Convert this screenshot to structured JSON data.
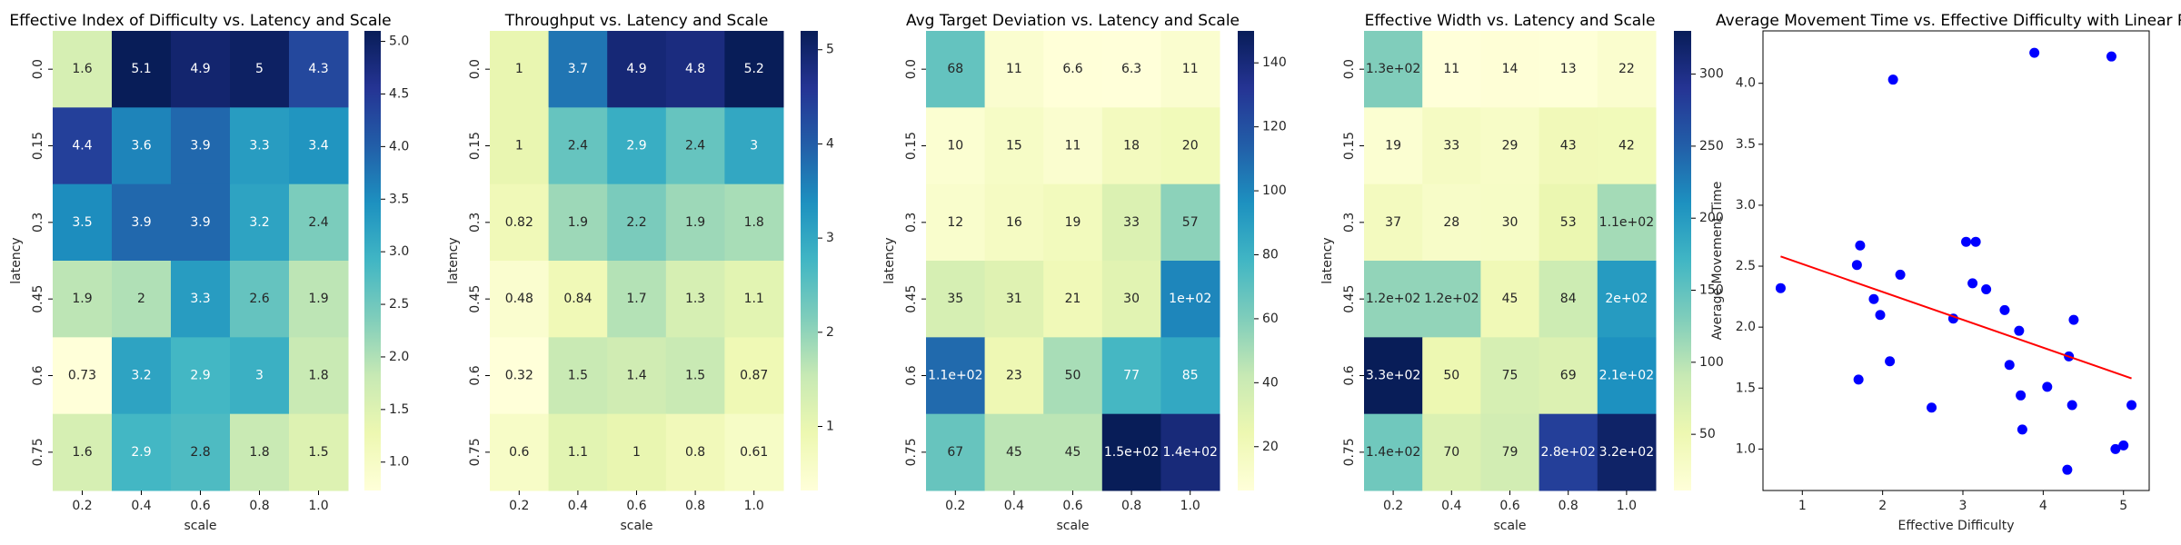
{
  "chart_data": [
    {
      "type": "heatmap",
      "title": "Effective Index of Difficulty vs. Latency and Scale",
      "xlabel": "scale",
      "ylabel": "latency",
      "categories": [
        "0.2",
        "0.4",
        "0.6",
        "0.8",
        "1.0"
      ],
      "rows": [
        "0.0",
        "0.15",
        "0.3",
        "0.45",
        "0.6",
        "0.75"
      ],
      "values": [
        [
          1.6,
          5.1,
          4.9,
          5,
          4.3
        ],
        [
          4.4,
          3.6,
          3.9,
          3.3,
          3.4
        ],
        [
          3.5,
          3.9,
          3.9,
          3.2,
          2.4
        ],
        [
          1.9,
          2,
          3.3,
          2.6,
          1.9
        ],
        [
          0.73,
          3.2,
          2.9,
          3,
          1.8
        ],
        [
          1.6,
          2.9,
          2.8,
          1.8,
          1.5
        ]
      ],
      "colormap": "YlGnBu",
      "clim": [
        0.73,
        5.1
      ],
      "cticks": [
        {
          "value": 1.0,
          "label": "1.0"
        },
        {
          "value": 1.5,
          "label": "1.5"
        },
        {
          "value": 2.0,
          "label": "2.0"
        },
        {
          "value": 2.5,
          "label": "2.5"
        },
        {
          "value": 3.0,
          "label": "3.0"
        },
        {
          "value": 3.5,
          "label": "3.5"
        },
        {
          "value": 4.0,
          "label": "4.0"
        },
        {
          "value": 4.5,
          "label": "4.5"
        },
        {
          "value": 5.0,
          "label": "5.0"
        }
      ]
    },
    {
      "type": "heatmap",
      "title": "Throughput vs. Latency and Scale",
      "xlabel": "scale",
      "ylabel": "latency",
      "categories": [
        "0.2",
        "0.4",
        "0.6",
        "0.8",
        "1.0"
      ],
      "rows": [
        "0.0",
        "0.15",
        "0.3",
        "0.45",
        "0.6",
        "0.75"
      ],
      "values": [
        [
          1,
          3.7,
          4.9,
          4.8,
          5.2
        ],
        [
          1,
          2.4,
          2.9,
          2.4,
          3
        ],
        [
          0.82,
          1.9,
          2.2,
          1.9,
          1.8
        ],
        [
          0.48,
          0.84,
          1.7,
          1.3,
          1.1
        ],
        [
          0.32,
          1.5,
          1.4,
          1.5,
          0.87
        ],
        [
          0.6,
          1.1,
          1,
          0.8,
          0.61
        ]
      ],
      "colormap": "YlGnBu",
      "clim": [
        0.32,
        5.2
      ],
      "cticks": [
        1,
        2,
        3,
        4,
        5
      ]
    },
    {
      "type": "heatmap",
      "title": "Avg Target Deviation vs. Latency and Scale",
      "xlabel": "scale",
      "ylabel": "latency",
      "categories": [
        "0.2",
        "0.4",
        "0.6",
        "0.8",
        "1.0"
      ],
      "rows": [
        "0.0",
        "0.15",
        "0.3",
        "0.45",
        "0.6",
        "0.75"
      ],
      "values": [
        [
          68,
          11,
          6.6,
          6.3,
          11
        ],
        [
          10,
          15,
          11,
          18,
          20
        ],
        [
          12,
          16,
          19,
          33,
          57
        ],
        [
          35,
          31,
          21,
          30,
          100
        ],
        [
          110,
          23,
          50,
          77,
          85
        ],
        [
          67,
          45,
          45,
          150,
          140
        ]
      ],
      "value_labels": [
        [
          "68",
          "11",
          "6.6",
          "6.3",
          "11"
        ],
        [
          "10",
          "15",
          "11",
          "18",
          "20"
        ],
        [
          "12",
          "16",
          "19",
          "33",
          "57"
        ],
        [
          "35",
          "31",
          "21",
          "30",
          "1e+02"
        ],
        [
          "1.1e+02",
          "23",
          "50",
          "77",
          "85"
        ],
        [
          "67",
          "45",
          "45",
          "1.5e+02",
          "1.4e+02"
        ]
      ],
      "colormap": "YlGnBu",
      "clim": [
        6.3,
        150
      ],
      "cticks": [
        20,
        40,
        60,
        80,
        100,
        120,
        140
      ]
    },
    {
      "type": "heatmap",
      "title": "Effective Width vs. Latency and Scale",
      "xlabel": "scale",
      "ylabel": "latency",
      "categories": [
        "0.2",
        "0.4",
        "0.6",
        "0.8",
        "1.0"
      ],
      "rows": [
        "0.0",
        "0.15",
        "0.3",
        "0.45",
        "0.6",
        "0.75"
      ],
      "values": [
        [
          130,
          11,
          14,
          13,
          22
        ],
        [
          19,
          33,
          29,
          43,
          42
        ],
        [
          37,
          28,
          30,
          53,
          110
        ],
        [
          120,
          120,
          45,
          84,
          200
        ],
        [
          330,
          50,
          75,
          69,
          210
        ],
        [
          140,
          70,
          79,
          280,
          320
        ]
      ],
      "value_labels": [
        [
          "1.3e+02",
          "11",
          "14",
          "13",
          "22"
        ],
        [
          "19",
          "33",
          "29",
          "43",
          "42"
        ],
        [
          "37",
          "28",
          "30",
          "53",
          "1.1e+02"
        ],
        [
          "1.2e+02",
          "1.2e+02",
          "45",
          "84",
          "2e+02"
        ],
        [
          "3.3e+02",
          "50",
          "75",
          "69",
          "2.1e+02"
        ],
        [
          "1.4e+02",
          "70",
          "79",
          "2.8e+02",
          "3.2e+02"
        ]
      ],
      "colormap": "YlGnBu",
      "clim": [
        11,
        330
      ],
      "cticks": [
        50,
        100,
        150,
        200,
        250,
        300
      ]
    },
    {
      "type": "scatter",
      "title": "Average Movement Time vs. Effective Difficulty with Linear Re",
      "xlabel": "Effective Difficulty",
      "ylabel": "Average Movement Time",
      "x": [
        0.73,
        1.68,
        1.72,
        1.7,
        1.89,
        1.97,
        2.09,
        2.13,
        2.22,
        2.61,
        2.88,
        3.04,
        3.16,
        3.12,
        3.29,
        3.52,
        3.58,
        3.7,
        3.72,
        3.74,
        3.89,
        4.05,
        4.32,
        4.38,
        4.36,
        4.3,
        4.9,
        5.0,
        5.1,
        4.85
      ],
      "y": [
        2.32,
        2.51,
        2.67,
        1.57,
        2.23,
        2.1,
        1.72,
        4.03,
        2.43,
        1.34,
        2.07,
        2.7,
        2.7,
        2.36,
        2.31,
        2.14,
        1.69,
        1.97,
        1.44,
        1.16,
        4.25,
        1.51,
        1.76,
        2.06,
        1.36,
        0.83,
        1.0,
        1.03,
        1.36,
        4.22
      ],
      "color": "#0000ff",
      "fit": {
        "x": [
          0.73,
          5.1
        ],
        "y": [
          2.58,
          1.58
        ],
        "color": "#ff0000"
      },
      "xlim": [
        0.51,
        5.32
      ],
      "ylim": [
        0.66,
        4.43
      ],
      "xticks": [
        1,
        2,
        3,
        4,
        5
      ],
      "yticks": [
        {
          "value": 1.0,
          "label": "1.0"
        },
        {
          "value": 1.5,
          "label": "1.5"
        },
        {
          "value": 2.0,
          "label": "2.0"
        },
        {
          "value": 2.5,
          "label": "2.5"
        },
        {
          "value": 3.0,
          "label": "3.0"
        },
        {
          "value": 3.5,
          "label": "3.5"
        },
        {
          "value": 4.0,
          "label": "4.0"
        }
      ]
    }
  ]
}
